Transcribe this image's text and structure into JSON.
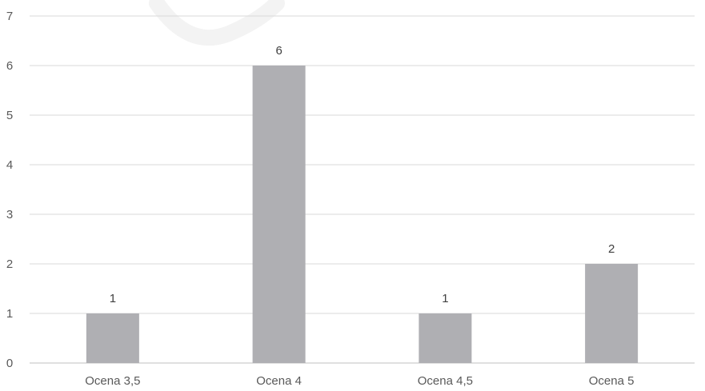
{
  "chart_data": {
    "type": "bar",
    "categories": [
      "Ocena 3,5",
      "Ocena 4",
      "Ocena 4,5",
      "Ocena 5"
    ],
    "values": [
      1,
      6,
      1,
      2
    ],
    "data_labels": [
      "1",
      "6",
      "1",
      "2"
    ],
    "yticks": [
      "0",
      "1",
      "2",
      "3",
      "4",
      "5",
      "6",
      "7"
    ],
    "ylim": [
      0,
      7
    ],
    "title": "",
    "xlabel": "",
    "ylabel": "",
    "grid": true,
    "legend": "none",
    "colors": {
      "bar": "#afafb3",
      "grid": "#d9d9d9",
      "axis": "#bfbfbf",
      "tick_text": "#595959",
      "data_label_text": "#404040",
      "watermark": "#f3f3f3"
    }
  }
}
